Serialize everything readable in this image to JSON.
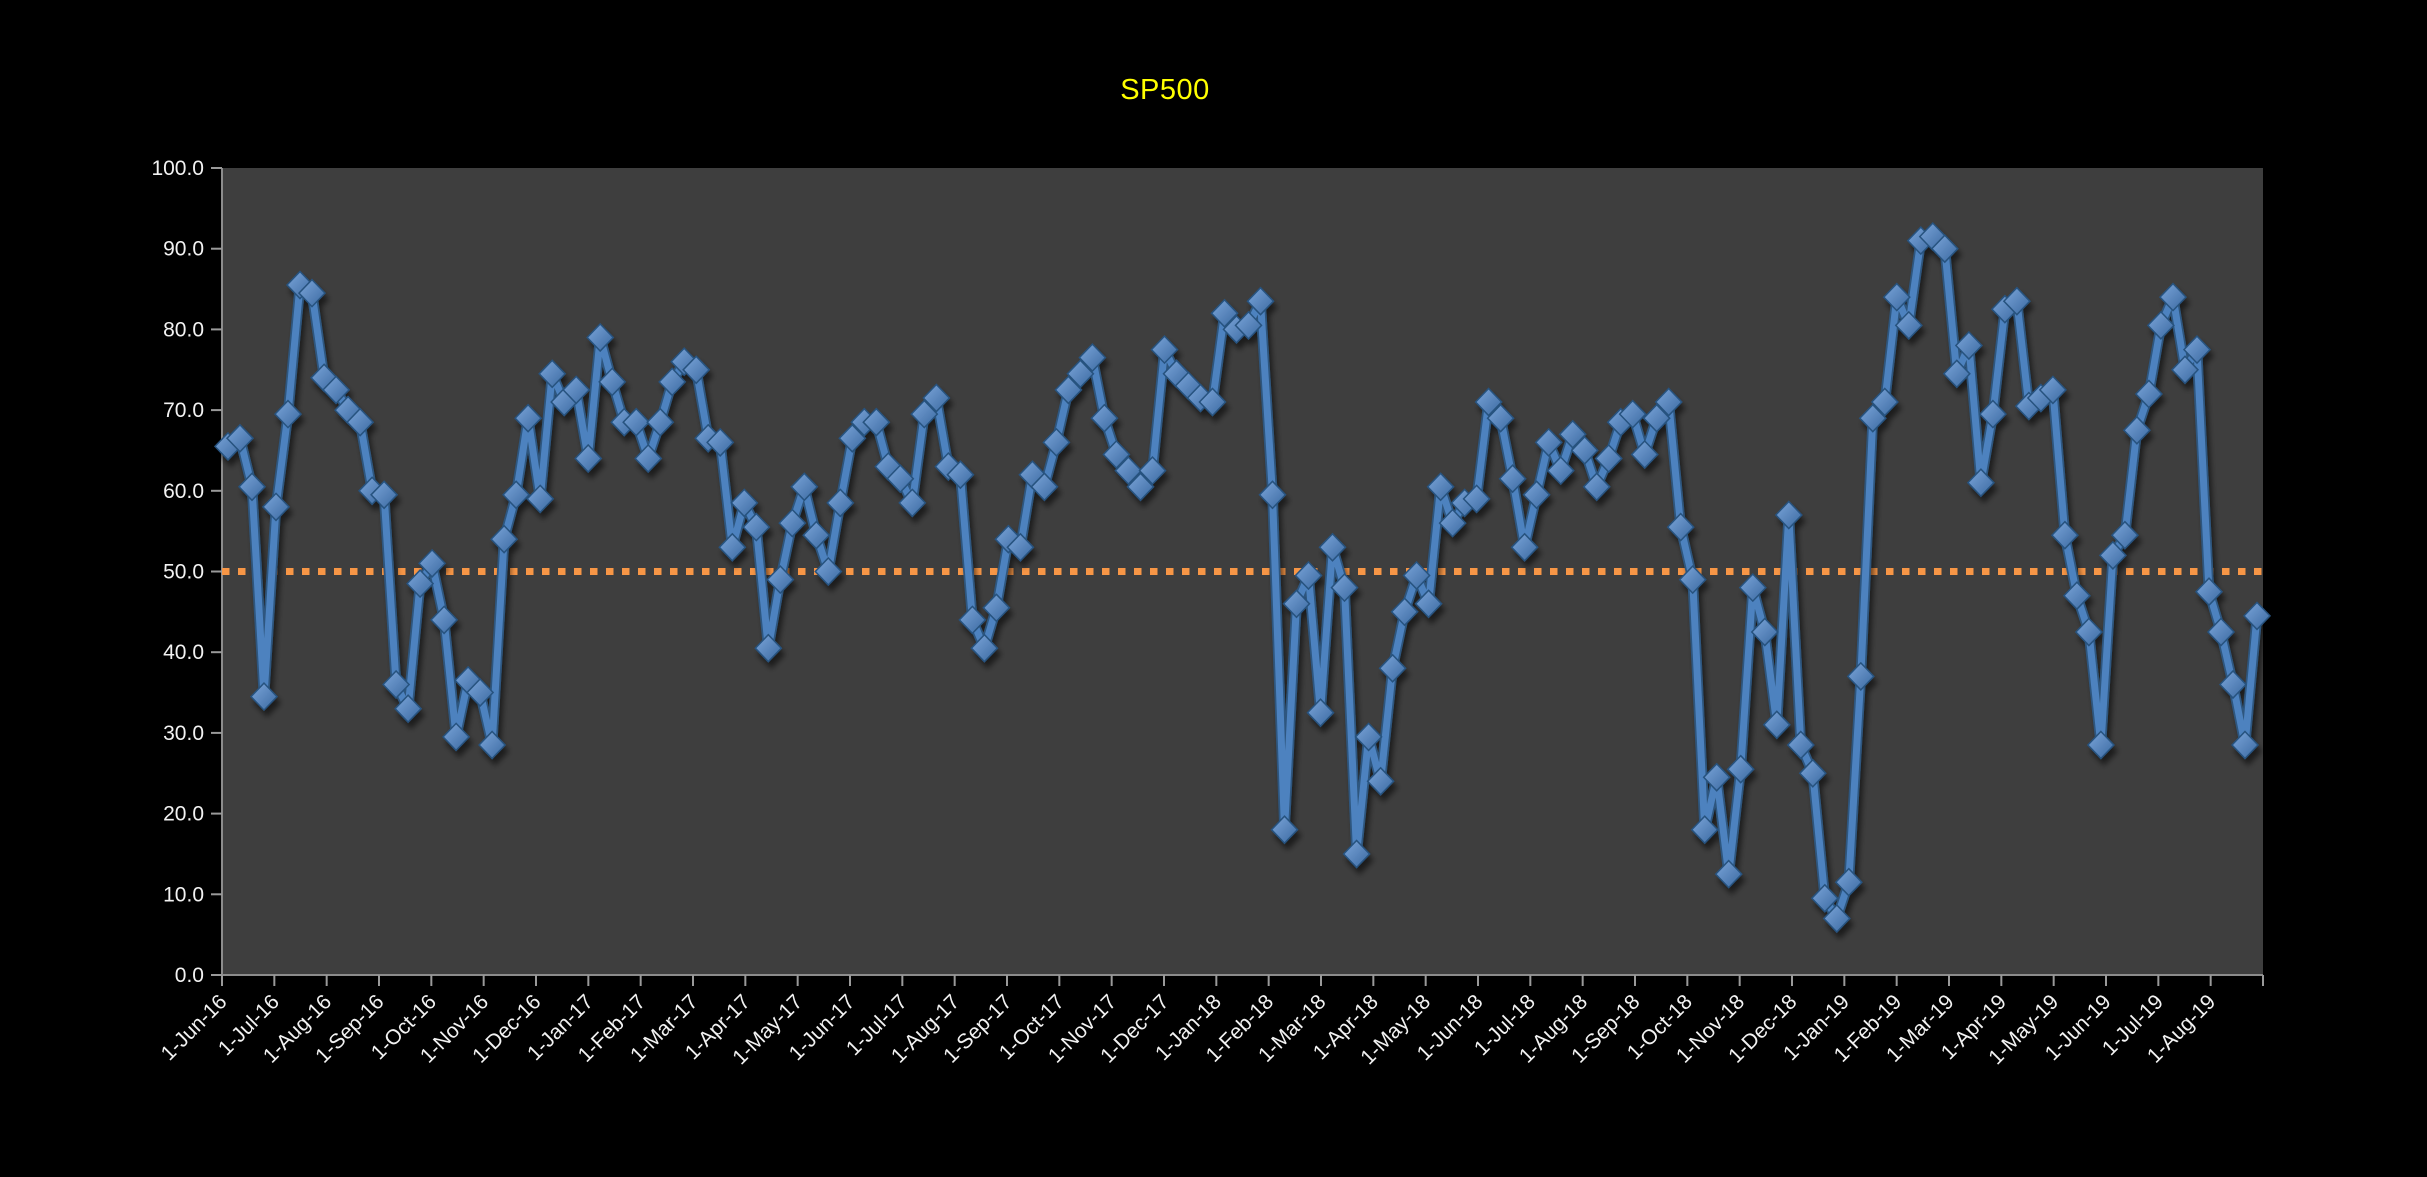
{
  "title": {
    "text": "SP500",
    "color": "#FFFF00"
  },
  "chart_data": {
    "type": "line",
    "title": "SP500",
    "xlabel": "",
    "ylabel": "",
    "ylim": [
      0,
      100
    ],
    "y_tick_step": 10,
    "y_tick_labels": [
      "100.0",
      "90.0",
      "80.0",
      "70.0",
      "60.0",
      "50.0",
      "40.0",
      "30.0",
      "20.0",
      "10.0",
      "0.0"
    ],
    "x_tick_labels": [
      "1-Jun-16",
      "1-Jul-16",
      "1-Aug-16",
      "1-Sep-16",
      "1-Oct-16",
      "1-Nov-16",
      "1-Dec-16",
      "1-Jan-17",
      "1-Feb-17",
      "1-Mar-17",
      "1-Apr-17",
      "1-May-17",
      "1-Jun-17",
      "1-Jul-17",
      "1-Aug-17",
      "1-Sep-17",
      "1-Oct-17",
      "1-Nov-17",
      "1-Dec-17",
      "1-Jan-18",
      "1-Feb-18",
      "1-Mar-18",
      "1-Apr-18",
      "1-May-18",
      "1-Jun-18",
      "1-Jul-18",
      "1-Aug-18",
      "1-Sep-18",
      "1-Oct-18",
      "1-Nov-18",
      "1-Dec-18",
      "1-Jan-19",
      "1-Feb-19",
      "1-Mar-19",
      "1-Apr-19",
      "1-May-19",
      "1-Jun-19",
      "1-Jul-19",
      "1-Aug-19"
    ],
    "grid": "off",
    "legend": "none",
    "plot_bg": "#3E3E3E",
    "page_bg": "#000000",
    "axis_color": "#8C8C8C",
    "tick_color": "#9A9A9A",
    "label_color": "#F2F2F2",
    "reference_line": {
      "value": 50.0,
      "color": "#F79646",
      "style": "dotted"
    },
    "series": [
      {
        "name": "SP500",
        "color": "#4A7EBB",
        "marker": "diamond",
        "cadence": "weekly",
        "values": [
          65.5,
          66.5,
          60.5,
          34.5,
          58,
          69.5,
          85.5,
          84.5,
          74,
          72.5,
          70,
          68.5,
          60,
          59.5,
          36,
          33,
          48.5,
          51,
          44,
          29.5,
          36.5,
          35,
          28.5,
          54,
          59.5,
          69,
          59,
          74.5,
          71,
          72.5,
          64,
          79,
          73.5,
          68.5,
          68.5,
          64,
          68.5,
          73.5,
          76,
          75,
          66.5,
          66,
          53,
          58.5,
          55.5,
          40.5,
          49,
          56,
          60.5,
          54.5,
          50,
          58.5,
          66.5,
          68.5,
          68.5,
          63,
          61.5,
          58.5,
          69.5,
          71.5,
          63,
          62,
          44,
          40.5,
          45.5,
          54,
          53,
          62,
          60.5,
          66,
          72.5,
          74.5,
          76.5,
          69,
          64.5,
          62.5,
          60.5,
          62.5,
          77.5,
          74.5,
          73,
          71.5,
          71,
          82,
          80,
          80.5,
          83.5,
          59.5,
          18,
          46,
          49.5,
          32.5,
          53,
          48,
          15,
          29.5,
          24,
          38,
          45,
          49.5,
          46,
          60.5,
          56,
          58.5,
          59,
          71,
          69,
          61.5,
          53,
          59.5,
          66,
          62.5,
          67,
          65,
          60.5,
          64,
          68.5,
          69.5,
          64.5,
          69,
          71,
          55.5,
          49,
          18,
          24.5,
          12.5,
          25.5,
          48,
          42.5,
          31,
          57,
          28.5,
          25,
          9.5,
          7,
          11.5,
          37,
          69,
          71,
          84,
          80.5,
          91,
          91.5,
          90,
          74.5,
          78,
          61,
          69.5,
          82.5,
          83.5,
          70.5,
          71.5,
          72.5,
          54.5,
          47,
          42.5,
          28.5,
          52,
          54.5,
          67.5,
          72,
          80.5,
          84,
          75,
          77.5,
          47.5,
          42.5,
          36,
          28.5,
          44.5
        ]
      }
    ]
  }
}
